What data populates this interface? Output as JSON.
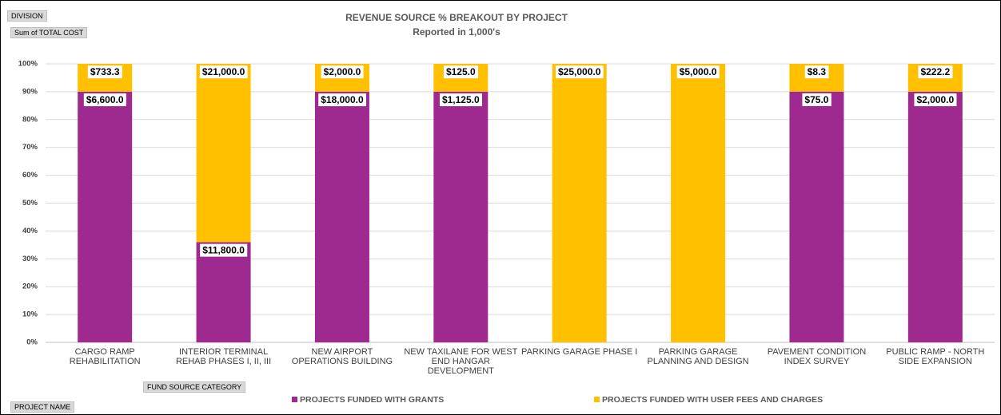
{
  "pivot_fields": {
    "filter": "DIVISION",
    "values": "Sum of TOTAL COST",
    "legend": "FUND SOURCE CATEGORY",
    "axis": "PROJECT NAME"
  },
  "chart_data": {
    "type": "bar",
    "stacking": "percent",
    "title": "REVENUE SOURCE % BREAKOUT BY PROJECT",
    "subtitle": "Reported in 1,000's",
    "categories": [
      "CARGO RAMP REHABILITATION",
      "INTERIOR TERMINAL REHAB PHASES I, II, III",
      "NEW AIRPORT OPERATIONS BUILDING",
      "NEW TAXILANE FOR WEST END HANGAR DEVELOPMENT",
      "PARKING GARAGE PHASE I",
      "PARKING GARAGE PLANNING AND DESIGN",
      "PAVEMENT CONDITION INDEX SURVEY",
      "PUBLIC RAMP - NORTH SIDE EXPANSION"
    ],
    "series": [
      {
        "name": "PROJECTS FUNDED WITH GRANTS",
        "color": "#9e2a8f",
        "values": [
          6600,
          11800,
          18000,
          1125,
          null,
          null,
          75,
          2000
        ],
        "value_labels": [
          "$6,600.0",
          "$11,800.0",
          "$18,000.0",
          "$1,125.0",
          null,
          null,
          "$75.0",
          "$2,000.0"
        ]
      },
      {
        "name": "PROJECTS FUNDED WITH USER FEES AND CHARGES",
        "color": "#ffc000",
        "values": [
          733.3,
          21000,
          2000,
          125,
          25000,
          5000,
          8.3,
          222.2
        ],
        "value_labels": [
          "$733.3",
          "$21,000.0",
          "$2,000.0",
          "$125.0",
          "$25,000.0",
          "$5,000.0",
          "$8.3",
          "$222.2"
        ]
      }
    ],
    "ylim": [
      0,
      100
    ],
    "yticks": [
      {
        "value": 0,
        "label": "0%"
      },
      {
        "value": 10,
        "label": "10%"
      },
      {
        "value": 20,
        "label": "20%"
      },
      {
        "value": 30,
        "label": "30%"
      },
      {
        "value": 40,
        "label": "40%"
      },
      {
        "value": 50,
        "label": "50%"
      },
      {
        "value": 60,
        "label": "60%"
      },
      {
        "value": 70,
        "label": "70%"
      },
      {
        "value": 80,
        "label": "80%"
      },
      {
        "value": 90,
        "label": "90%"
      },
      {
        "value": 100,
        "label": "100%"
      }
    ],
    "grid": true,
    "legend": "bottom"
  }
}
